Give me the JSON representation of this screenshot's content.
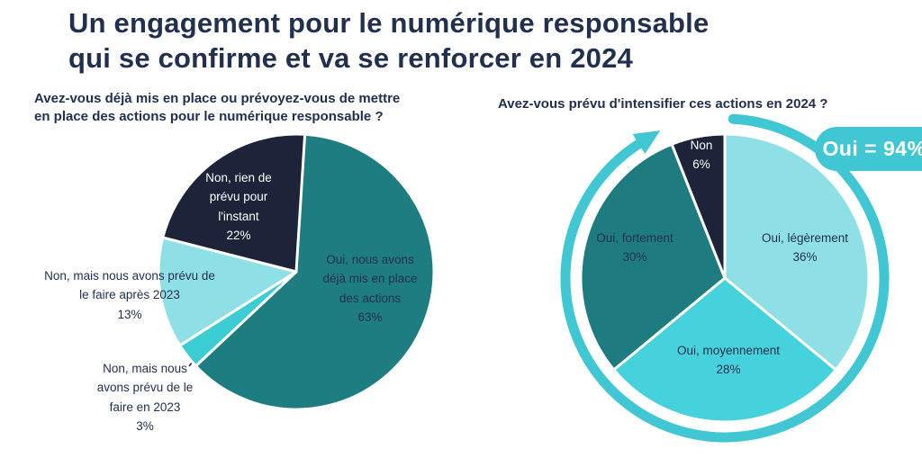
{
  "page": {
    "title": "Un engagement pour le numérique responsable\nqui se confirme et va se renforcer en 2024"
  },
  "ui": {
    "percent_sign": "%"
  },
  "theme": {
    "navy": "#1d2338",
    "teal": "#1e7d80",
    "light_cyan": "#8fe0e6",
    "turquoise": "#46d2dc",
    "accent": "#41c7d4",
    "text_navy": "#22304f"
  },
  "chart_data": [
    {
      "type": "pie",
      "title": "Avez-vous déjà mis en place ou prévoyez-vous de mettre\nen place des actions pour le numérique responsable ?",
      "start_angle_deg": 0,
      "direction": "clockwise",
      "slices": [
        {
          "label": "Oui, nous avons\ndéjà mis en place\ndes actions",
          "value": 63,
          "color": "#1e7d80",
          "label_placement": "inside"
        },
        {
          "label": "Non, mais nous\navons prévu de le\nfaire en 2023",
          "value": 3,
          "color": "#3bccd4",
          "label_placement": "outside"
        },
        {
          "label": "Non, mais nous avons prévu de\nle faire après 2023",
          "value": 13,
          "color": "#8fe0e6",
          "label_placement": "outside"
        },
        {
          "label": "Non, rien de\nprévu pour\nl'instant",
          "value": 22,
          "color": "#1d2338",
          "label_placement": "inside"
        }
      ]
    },
    {
      "type": "pie",
      "title": "Avez-vous prévu d'intensifier ces actions en 2024 ?",
      "start_angle_deg": 0,
      "direction": "clockwise",
      "slices": [
        {
          "label": "Oui, légèrement",
          "value": 36,
          "color": "#8fe0e6",
          "label_placement": "inside"
        },
        {
          "label": "Oui, moyennement",
          "value": 28,
          "color": "#46d2dc",
          "label_placement": "inside"
        },
        {
          "label": "Oui, fortement",
          "value": 30,
          "color": "#1e7c80",
          "label_placement": "inside"
        },
        {
          "label": "Non",
          "value": 6,
          "color": "#1d2338",
          "label_placement": "inside"
        }
      ],
      "ring_color": "#41c7d4",
      "badge": "Oui = 94%"
    }
  ]
}
